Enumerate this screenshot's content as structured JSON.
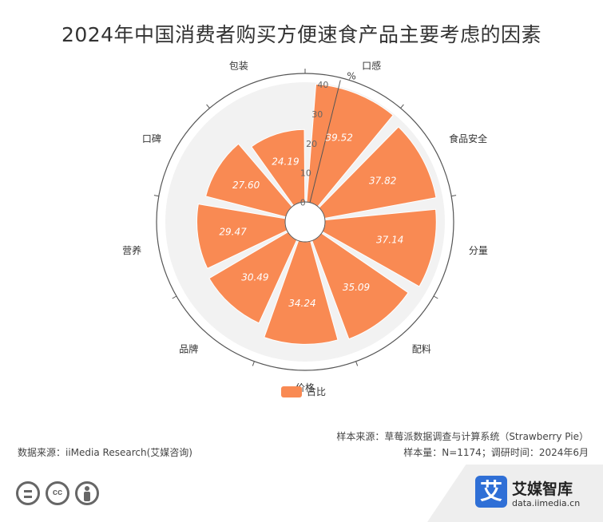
{
  "chart_data": {
    "type": "polar-bar",
    "title": "2024年中国消费者购买方便速食产品主要考虑的因素",
    "categories": [
      "口感",
      "食品安全",
      "分量",
      "配料",
      "价格",
      "品牌",
      "营养",
      "口碑",
      "包装"
    ],
    "series": [
      {
        "name": "占比",
        "values": [
          39.52,
          37.82,
          37.14,
          35.09,
          34.24,
          30.49,
          29.47,
          27.6,
          24.19
        ]
      }
    ],
    "radial_axis": {
      "unit": "%",
      "range": [
        0,
        40
      ],
      "ticks": [
        "0",
        "10",
        "20",
        "30",
        "40"
      ]
    },
    "legend_position": "bottom-center",
    "colors": {
      "bar": "#f98a53",
      "axis": "#555555",
      "band": "#f2f2f2"
    }
  },
  "footer": {
    "sample_source": "样本来源：草莓派数据调查与计算系统（Strawberry Pie）",
    "sample_info": "样本量：N=1174；调研时间：2024年6月",
    "data_source": "数据来源：iiMedia Research(艾媒咨询)"
  },
  "brand": {
    "name": "艾媒智库",
    "url": "data.iimedia.cn",
    "icon_char": "艾"
  },
  "icons": [
    "cc-equal-icon",
    "cc-cc-icon",
    "cc-person-icon"
  ]
}
